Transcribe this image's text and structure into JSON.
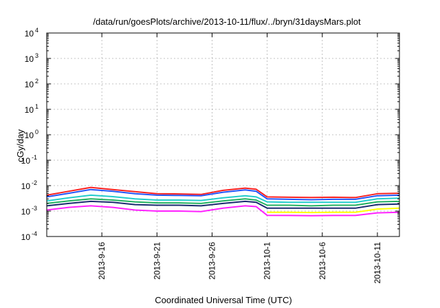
{
  "colors": {
    "red": "#ff2020",
    "blue": "#2255ff",
    "cyan": "#22cccc",
    "green": "#22b060",
    "navy": "#1a2a70",
    "yellow": "#ffff00",
    "magenta": "#ff20ff"
  },
  "chart_data": {
    "type": "line",
    "title": "/data/run/goesPlots/archive/2013-10-11/flux/../bryn/31daysMars.plot",
    "xlabel": "Coordinated Universal Time (UTC)",
    "ylabel": "cGy/day",
    "yscale": "log",
    "ylim": [
      0.0001,
      10000
    ],
    "xlim": [
      "2013-09-11",
      "2013-10-13"
    ],
    "grid": true,
    "y_ticks": [
      {
        "base": "10",
        "exp": "-4",
        "value": 0.0001
      },
      {
        "base": "10",
        "exp": "-3",
        "value": 0.001
      },
      {
        "base": "10",
        "exp": "-2",
        "value": 0.01
      },
      {
        "base": "10",
        "exp": "-1",
        "value": 0.1
      },
      {
        "base": "10",
        "exp": "0",
        "value": 1
      },
      {
        "base": "10",
        "exp": "1",
        "value": 10
      },
      {
        "base": "10",
        "exp": "2",
        "value": 100
      },
      {
        "base": "10",
        "exp": "3",
        "value": 1000
      },
      {
        "base": "10",
        "exp": "4",
        "value": 10000
      }
    ],
    "x_ticks": [
      "2013-9-16",
      "2013-9-21",
      "2013-9-26",
      "2013-10-1",
      "2013-10-6",
      "2013-10-11"
    ],
    "series": [
      {
        "color": "#ff2020",
        "values": [
          [
            "2013-09-11",
            0.0042
          ],
          [
            "2013-09-13",
            0.006
          ],
          [
            "2013-09-15",
            0.0085
          ],
          [
            "2013-09-17",
            0.007
          ],
          [
            "2013-09-19",
            0.0058
          ],
          [
            "2013-09-21",
            0.0048
          ],
          [
            "2013-09-23",
            0.0047
          ],
          [
            "2013-09-25",
            0.0045
          ],
          [
            "2013-09-27",
            0.0065
          ],
          [
            "2013-09-29",
            0.008
          ],
          [
            "2013-09-30",
            0.0072
          ],
          [
            "2013-10-01",
            0.0036
          ],
          [
            "2013-10-03",
            0.0035
          ],
          [
            "2013-10-05",
            0.0034
          ],
          [
            "2013-10-07",
            0.0035
          ],
          [
            "2013-10-09",
            0.0034
          ],
          [
            "2013-10-11",
            0.0048
          ],
          [
            "2013-10-13",
            0.005
          ]
        ]
      },
      {
        "color": "#2255ff",
        "values": [
          [
            "2013-09-11",
            0.0036
          ],
          [
            "2013-09-13",
            0.005
          ],
          [
            "2013-09-15",
            0.007
          ],
          [
            "2013-09-17",
            0.006
          ],
          [
            "2013-09-19",
            0.0048
          ],
          [
            "2013-09-21",
            0.0042
          ],
          [
            "2013-09-23",
            0.0041
          ],
          [
            "2013-09-25",
            0.004
          ],
          [
            "2013-09-27",
            0.0055
          ],
          [
            "2013-09-29",
            0.0068
          ],
          [
            "2013-09-30",
            0.006
          ],
          [
            "2013-10-01",
            0.003
          ],
          [
            "2013-10-03",
            0.0029
          ],
          [
            "2013-10-05",
            0.0028
          ],
          [
            "2013-10-07",
            0.0029
          ],
          [
            "2013-10-09",
            0.0029
          ],
          [
            "2013-10-11",
            0.004
          ],
          [
            "2013-10-13",
            0.0042
          ]
        ]
      },
      {
        "color": "#22cccc",
        "values": [
          [
            "2013-09-11",
            0.0025
          ],
          [
            "2013-09-13",
            0.0033
          ],
          [
            "2013-09-15",
            0.0042
          ],
          [
            "2013-09-17",
            0.0037
          ],
          [
            "2013-09-19",
            0.003
          ],
          [
            "2013-09-21",
            0.0027
          ],
          [
            "2013-09-23",
            0.0027
          ],
          [
            "2013-09-25",
            0.0026
          ],
          [
            "2013-09-27",
            0.0033
          ],
          [
            "2013-09-29",
            0.004
          ],
          [
            "2013-09-30",
            0.0036
          ],
          [
            "2013-10-01",
            0.0023
          ],
          [
            "2013-10-03",
            0.0022
          ],
          [
            "2013-10-05",
            0.0022
          ],
          [
            "2013-10-07",
            0.0022
          ],
          [
            "2013-10-09",
            0.0022
          ],
          [
            "2013-10-11",
            0.003
          ],
          [
            "2013-10-13",
            0.0032
          ]
        ]
      },
      {
        "color": "#22b060",
        "values": [
          [
            "2013-09-11",
            0.002
          ],
          [
            "2013-09-13",
            0.0025
          ],
          [
            "2013-09-15",
            0.003
          ],
          [
            "2013-09-17",
            0.0027
          ],
          [
            "2013-09-19",
            0.0023
          ],
          [
            "2013-09-21",
            0.0021
          ],
          [
            "2013-09-23",
            0.0021
          ],
          [
            "2013-09-25",
            0.002
          ],
          [
            "2013-09-27",
            0.0025
          ],
          [
            "2013-09-29",
            0.003
          ],
          [
            "2013-09-30",
            0.0027
          ],
          [
            "2013-10-01",
            0.0017
          ],
          [
            "2013-10-03",
            0.0017
          ],
          [
            "2013-10-05",
            0.0016
          ],
          [
            "2013-10-07",
            0.0017
          ],
          [
            "2013-10-09",
            0.0017
          ],
          [
            "2013-10-11",
            0.0023
          ],
          [
            "2013-10-13",
            0.0024
          ]
        ]
      },
      {
        "color": "#1a2a70",
        "values": [
          [
            "2013-09-11",
            0.0016
          ],
          [
            "2013-09-13",
            0.002
          ],
          [
            "2013-09-15",
            0.0024
          ],
          [
            "2013-09-17",
            0.0022
          ],
          [
            "2013-09-19",
            0.0018
          ],
          [
            "2013-09-21",
            0.0017
          ],
          [
            "2013-09-23",
            0.0017
          ],
          [
            "2013-09-25",
            0.0016
          ],
          [
            "2013-09-27",
            0.002
          ],
          [
            "2013-09-29",
            0.0024
          ],
          [
            "2013-09-30",
            0.0022
          ],
          [
            "2013-10-01",
            0.0013
          ],
          [
            "2013-10-03",
            0.0013
          ],
          [
            "2013-10-05",
            0.0013
          ],
          [
            "2013-10-07",
            0.0013
          ],
          [
            "2013-10-09",
            0.0013
          ],
          [
            "2013-10-11",
            0.0018
          ],
          [
            "2013-10-13",
            0.0019
          ]
        ]
      },
      {
        "color": "#ffff00",
        "values": [
          [
            "2013-10-01",
            0.0009
          ],
          [
            "2013-10-03",
            0.0009
          ],
          [
            "2013-10-05",
            0.00088
          ],
          [
            "2013-10-07",
            0.0009
          ],
          [
            "2013-10-09",
            0.0009
          ],
          [
            "2013-10-11",
            0.0012
          ],
          [
            "2013-10-13",
            0.0013
          ]
        ]
      },
      {
        "color": "#ff20ff",
        "values": [
          [
            "2013-09-11",
            0.0011
          ],
          [
            "2013-09-13",
            0.0014
          ],
          [
            "2013-09-15",
            0.0016
          ],
          [
            "2013-09-17",
            0.0014
          ],
          [
            "2013-09-19",
            0.0011
          ],
          [
            "2013-09-21",
            0.001
          ],
          [
            "2013-09-23",
            0.001
          ],
          [
            "2013-09-25",
            0.00095
          ],
          [
            "2013-09-27",
            0.0013
          ],
          [
            "2013-09-29",
            0.0016
          ],
          [
            "2013-09-30",
            0.0015
          ],
          [
            "2013-10-01",
            0.00068
          ],
          [
            "2013-10-03",
            0.00067
          ],
          [
            "2013-10-05",
            0.00066
          ],
          [
            "2013-10-07",
            0.00067
          ],
          [
            "2013-10-09",
            0.00067
          ],
          [
            "2013-10-11",
            0.00085
          ],
          [
            "2013-10-13",
            0.0009
          ]
        ]
      }
    ]
  }
}
